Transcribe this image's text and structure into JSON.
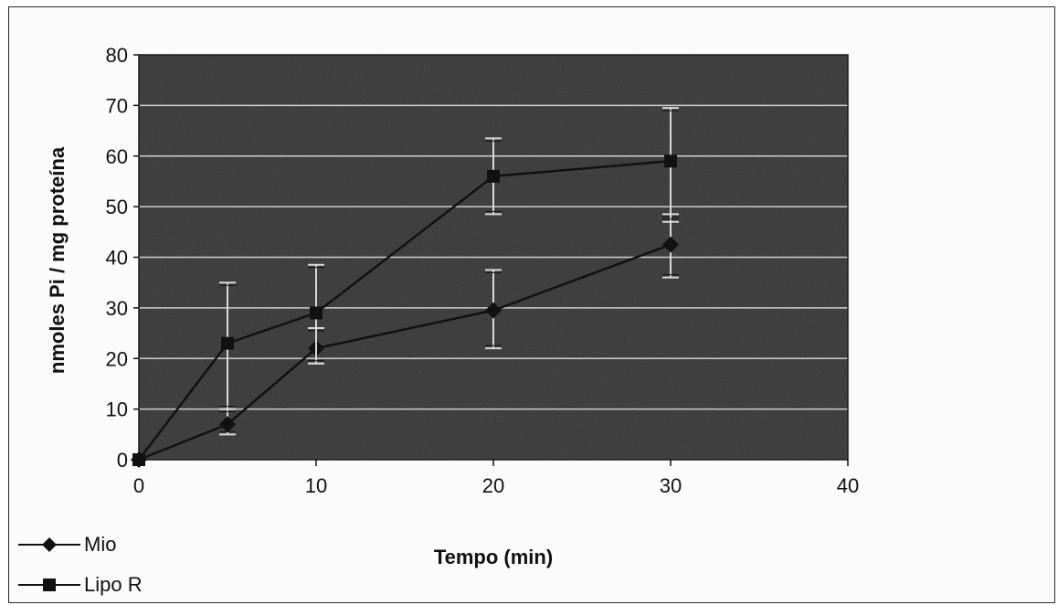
{
  "chart_data": {
    "type": "line",
    "xlabel": "Tempo (min)",
    "ylabel": "nmoles Pi / mg proteína",
    "xlim": [
      0,
      40
    ],
    "ylim": [
      0,
      80
    ],
    "xticks": [
      0,
      10,
      20,
      30,
      40
    ],
    "yticks": [
      0,
      10,
      20,
      30,
      40,
      50,
      60,
      70,
      80
    ],
    "grid": "horizontal",
    "legend_position": "bottom-left",
    "plot_background": "#4d4d4d",
    "gridline_color": "#cfcfcf",
    "series": [
      {
        "name": "Mio",
        "marker": "diamond",
        "color": "#111111",
        "points": [
          {
            "x": 0,
            "y": 0,
            "err_low": 0,
            "err_high": 0
          },
          {
            "x": 5,
            "y": 7,
            "err_low": 2,
            "err_high": 3
          },
          {
            "x": 10,
            "y": 22,
            "err_low": 3,
            "err_high": 4
          },
          {
            "x": 20,
            "y": 29.5,
            "err_low": 7.5,
            "err_high": 8
          },
          {
            "x": 30,
            "y": 42.5,
            "err_low": 6.5,
            "err_high": 6
          }
        ]
      },
      {
        "name": "Lipo R",
        "marker": "square",
        "color": "#111111",
        "points": [
          {
            "x": 0,
            "y": 0,
            "err_low": 0,
            "err_high": 0
          },
          {
            "x": 5,
            "y": 23,
            "err_low": 13,
            "err_high": 12
          },
          {
            "x": 10,
            "y": 29,
            "err_low": 10,
            "err_high": 9.5
          },
          {
            "x": 20,
            "y": 56,
            "err_low": 7.5,
            "err_high": 7.5
          },
          {
            "x": 30,
            "y": 59,
            "err_low": 12,
            "err_high": 10.5
          }
        ]
      }
    ]
  }
}
